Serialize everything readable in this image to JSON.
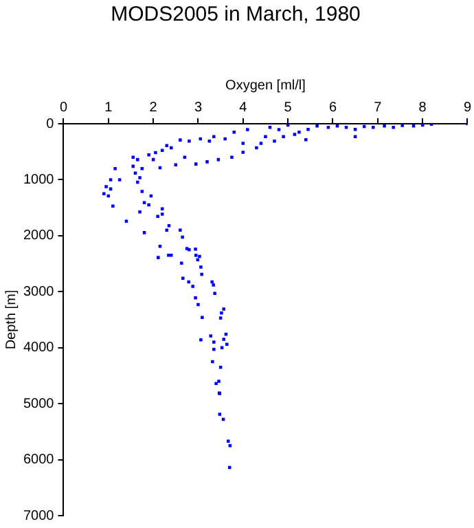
{
  "chart_data": {
    "type": "scatter",
    "title": "MODS2005 in March, 1980",
    "xlabel": "Oxygen [ml/l]",
    "ylabel": "Depth [m]",
    "x": [
      9.0,
      8.2,
      8.0,
      7.8,
      7.55,
      7.35,
      7.15,
      6.9,
      6.7,
      6.5,
      6.5,
      6.3,
      6.1,
      5.9,
      5.65,
      5.45,
      5.4,
      5.25,
      5.0,
      5.15,
      4.9,
      4.8,
      4.7,
      4.6,
      4.5,
      4.4,
      4.3,
      4.1,
      4.0,
      4.0,
      3.8,
      3.75,
      3.6,
      3.45,
      3.35,
      3.2,
      3.25,
      3.05,
      2.95,
      2.8,
      2.7,
      2.6,
      2.5,
      2.4,
      2.3,
      2.2,
      2.15,
      2.05,
      2.0,
      1.9,
      1.75,
      1.65,
      1.55,
      1.6,
      1.65,
      1.55,
      1.7,
      1.75,
      1.95,
      1.8,
      1.9,
      1.7,
      2.2,
      2.1,
      2.2,
      1.4,
      1.8,
      2.35,
      2.6,
      2.3,
      2.65,
      2.15,
      2.4,
      2.75,
      2.95,
      1.15,
      1.25,
      1.05,
      0.95,
      0.9,
      1.0,
      1.1,
      1.05,
      2.11,
      2.34,
      2.8,
      2.94,
      3.03,
      2.99,
      2.63,
      3.06,
      2.66,
      2.79,
      2.88,
      3.08,
      3.31,
      3.34,
      3.37,
      2.94,
      3.0,
      3.57,
      3.52,
      3.5,
      3.09,
      3.28,
      3.62,
      3.57,
      3.06,
      3.35,
      3.64,
      3.53,
      3.35,
      3.32,
      3.5,
      3.4,
      3.46,
      3.48,
      3.47,
      3.48,
      3.56,
      3.67,
      3.71,
      3.7
    ],
    "values": [
      0,
      10,
      25,
      40,
      30,
      65,
      40,
      65,
      50,
      100,
      230,
      65,
      40,
      65,
      40,
      100,
      285,
      150,
      25,
      190,
      230,
      105,
      310,
      65,
      230,
      350,
      430,
      105,
      350,
      510,
      150,
      600,
      270,
      640,
      230,
      680,
      310,
      270,
      720,
      310,
      600,
      290,
      735,
      430,
      390,
      475,
      785,
      515,
      640,
      555,
      800,
      640,
      600,
      880,
      1045,
      760,
      965,
      1210,
      1290,
      1410,
      1450,
      1575,
      1520,
      1655,
      1615,
      1740,
      1945,
      1820,
      1900,
      1900,
      2025,
      2190,
      2350,
      2230,
      2350,
      800,
      1000,
      1000,
      1125,
      1250,
      1290,
      1470,
      1165,
      2390,
      2350,
      2250,
      2240,
      2370,
      2430,
      2490,
      2560,
      2760,
      2825,
      2905,
      2690,
      2825,
      2880,
      3030,
      3110,
      3230,
      3310,
      3380,
      3470,
      3460,
      3790,
      3760,
      3850,
      3860,
      3900,
      3940,
      4000,
      4030,
      4250,
      4350,
      4640,
      4600,
      4820,
      4810,
      5190,
      5280,
      5670,
      5750,
      6140
    ],
    "color": "#0000ff",
    "marker": "square",
    "xlim": [
      0,
      9
    ],
    "xticks": [
      0,
      1,
      2,
      3,
      4,
      5,
      6,
      7,
      8,
      9
    ],
    "ylim": [
      7000,
      0
    ],
    "yticks": [
      0,
      1000,
      2000,
      3000,
      4000,
      5000,
      6000,
      7000
    ],
    "grid": false,
    "legend": false
  }
}
